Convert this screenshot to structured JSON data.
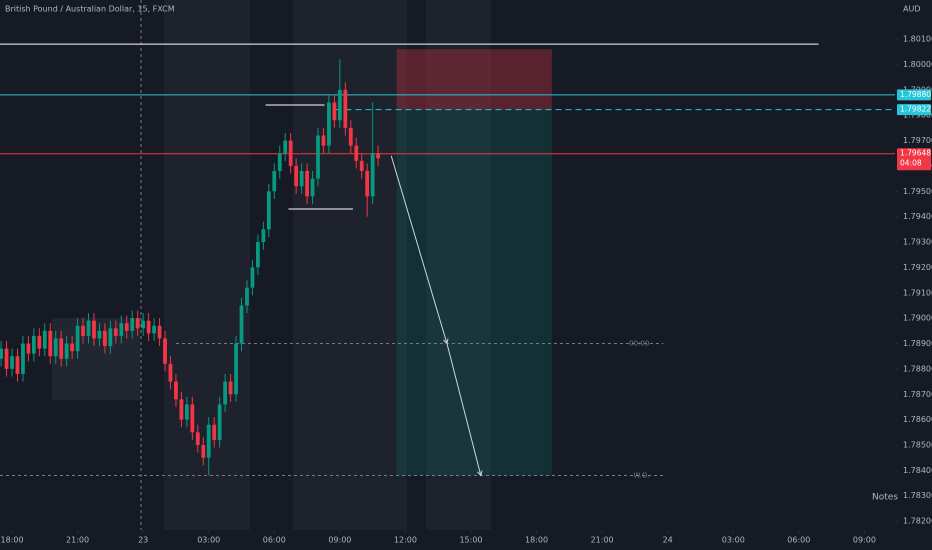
{
  "chart_data": {
    "type": "candlestick",
    "title": "British Pound / Australian Dollar, 15, FXCM",
    "currency": "AUD",
    "notes": "Notes",
    "up_color": "#089981",
    "down_color": "#f23645",
    "xlim": [
      -0.55,
      40.4
    ],
    "ylim": [
      1.78165,
      1.80254
    ],
    "xticks": [
      {
        "value": 0,
        "label": "18:00"
      },
      {
        "value": 3,
        "label": "21:00"
      },
      {
        "value": 6,
        "label": "23"
      },
      {
        "value": 9,
        "label": "03:00"
      },
      {
        "value": 12,
        "label": "06:00"
      },
      {
        "value": 15,
        "label": "09:00"
      },
      {
        "value": 18,
        "label": "12:00"
      },
      {
        "value": 21,
        "label": "15:00"
      },
      {
        "value": 24,
        "label": "18:00"
      },
      {
        "value": 27,
        "label": "21:00"
      },
      {
        "value": 30,
        "label": "24"
      },
      {
        "value": 33,
        "label": "03:00"
      },
      {
        "value": 36,
        "label": "06:00"
      },
      {
        "value": 39,
        "label": "09:00"
      }
    ],
    "yticks": [
      {
        "value": 1.801,
        "label": "1.80100"
      },
      {
        "value": 1.8,
        "label": "1.80000"
      },
      {
        "value": 1.799,
        "label": "1.79900"
      },
      {
        "value": 1.798,
        "label": "1.79800"
      },
      {
        "value": 1.797,
        "label": "1.79700"
      },
      {
        "value": 1.796,
        "label": "1.79600"
      },
      {
        "value": 1.795,
        "label": "1.79500"
      },
      {
        "value": 1.794,
        "label": "1.79400"
      },
      {
        "value": 1.793,
        "label": "1.79300"
      },
      {
        "value": 1.792,
        "label": "1.79200"
      },
      {
        "value": 1.791,
        "label": "1.79100"
      },
      {
        "value": 1.79,
        "label": "1.79000"
      },
      {
        "value": 1.789,
        "label": "1.78900"
      },
      {
        "value": 1.788,
        "label": "1.78800"
      },
      {
        "value": 1.787,
        "label": "1.78700"
      },
      {
        "value": 1.786,
        "label": "1.78600"
      },
      {
        "value": 1.785,
        "label": "1.78500"
      },
      {
        "value": 1.784,
        "label": "1.78400"
      },
      {
        "value": 1.783,
        "label": "1.78300"
      },
      {
        "value": 1.782,
        "label": "1.78200"
      }
    ],
    "x": [
      -0.5,
      -0.25,
      0,
      0.25,
      0.5,
      0.75,
      1,
      1.25,
      1.5,
      1.75,
      2,
      2.25,
      2.5,
      2.75,
      3,
      3.25,
      3.5,
      3.75,
      4,
      4.25,
      4.5,
      4.75,
      5,
      5.25,
      5.5,
      5.75,
      6,
      6.25,
      6.5,
      6.75,
      7,
      7.25,
      7.5,
      7.75,
      8,
      8.25,
      8.5,
      8.75,
      9,
      9.25,
      9.5,
      9.75,
      10,
      10.25,
      10.5,
      10.75,
      11,
      11.25,
      11.5,
      11.75,
      12,
      12.25,
      12.5,
      12.75,
      13,
      13.25,
      13.5,
      13.75,
      14,
      14.25,
      14.5,
      14.75,
      15,
      15.25,
      15.5,
      15.75,
      16,
      16.25,
      16.5,
      16.75
    ],
    "open": [
      1.7884,
      1.7888,
      1.788,
      1.7885,
      1.7878,
      1.789,
      1.7886,
      1.7893,
      1.7888,
      1.7895,
      1.7885,
      1.7892,
      1.7884,
      1.789,
      1.7887,
      1.7897,
      1.7893,
      1.7899,
      1.7892,
      1.7895,
      1.7889,
      1.7896,
      1.7893,
      1.7898,
      1.7895,
      1.79,
      1.7896,
      1.7899,
      1.7894,
      1.7897,
      1.7892,
      1.7882,
      1.7875,
      1.7868,
      1.786,
      1.7866,
      1.7855,
      1.785,
      1.7845,
      1.7858,
      1.7852,
      1.7866,
      1.7875,
      1.787,
      1.789,
      1.7905,
      1.7912,
      1.792,
      1.793,
      1.7935,
      1.795,
      1.7958,
      1.7965,
      1.797,
      1.796,
      1.7952,
      1.7958,
      1.7948,
      1.7955,
      1.7972,
      1.7968,
      1.7985,
      1.7978,
      1.799,
      1.7975,
      1.7968,
      1.7962,
      1.7958,
      1.7948,
      1.7965
    ],
    "high": [
      1.7891,
      1.7891,
      1.7888,
      1.7888,
      1.7893,
      1.7893,
      1.7896,
      1.7896,
      1.7898,
      1.7898,
      1.7895,
      1.7895,
      1.7893,
      1.7893,
      1.79,
      1.79,
      1.7902,
      1.7902,
      1.7898,
      1.7898,
      1.7899,
      1.7899,
      1.7901,
      1.7901,
      1.7903,
      1.7903,
      1.7902,
      1.7902,
      1.79,
      1.79,
      1.7895,
      1.7885,
      1.7878,
      1.7871,
      1.7869,
      1.7869,
      1.7858,
      1.7853,
      1.7861,
      1.7861,
      1.7869,
      1.7878,
      1.7878,
      1.7893,
      1.7908,
      1.7915,
      1.7923,
      1.7933,
      1.7938,
      1.7953,
      1.7961,
      1.7968,
      1.7973,
      1.7973,
      1.7963,
      1.7961,
      1.7961,
      1.7958,
      1.7975,
      1.7975,
      1.7988,
      1.7988,
      1.8002,
      1.7993,
      1.7978,
      1.7971,
      1.7965,
      1.7961,
      1.7985,
      1.7968
    ],
    "low": [
      1.7881,
      1.7877,
      1.7877,
      1.7875,
      1.7875,
      1.7883,
      1.7883,
      1.7885,
      1.7885,
      1.7882,
      1.7882,
      1.7881,
      1.7881,
      1.7884,
      1.7884,
      1.789,
      1.789,
      1.7889,
      1.7889,
      1.7886,
      1.7886,
      1.789,
      1.789,
      1.7892,
      1.7892,
      1.7893,
      1.7893,
      1.7891,
      1.7891,
      1.7889,
      1.7879,
      1.7872,
      1.7865,
      1.7857,
      1.7857,
      1.7852,
      1.7847,
      1.7842,
      1.7838,
      1.7849,
      1.7849,
      1.7863,
      1.7867,
      1.7867,
      1.7887,
      1.7902,
      1.7909,
      1.7917,
      1.7927,
      1.7932,
      1.7947,
      1.7955,
      1.7962,
      1.7957,
      1.7949,
      1.7949,
      1.7945,
      1.7945,
      1.7952,
      1.7965,
      1.7965,
      1.7975,
      1.7975,
      1.7972,
      1.7965,
      1.7959,
      1.7955,
      1.794,
      1.7945,
      1.796
    ],
    "close": [
      1.7888,
      1.788,
      1.7885,
      1.7878,
      1.789,
      1.7886,
      1.7893,
      1.7888,
      1.7895,
      1.7885,
      1.7892,
      1.7884,
      1.789,
      1.7887,
      1.7897,
      1.7893,
      1.7899,
      1.7892,
      1.7895,
      1.7889,
      1.7896,
      1.7893,
      1.7898,
      1.7895,
      1.79,
      1.7896,
      1.7899,
      1.7894,
      1.7897,
      1.7892,
      1.7882,
      1.7875,
      1.7868,
      1.786,
      1.7866,
      1.7855,
      1.785,
      1.7845,
      1.7858,
      1.7852,
      1.7866,
      1.7875,
      1.787,
      1.789,
      1.7905,
      1.7912,
      1.792,
      1.793,
      1.7935,
      1.795,
      1.7958,
      1.7965,
      1.797,
      1.796,
      1.7952,
      1.7958,
      1.7948,
      1.7955,
      1.7972,
      1.7968,
      1.7985,
      1.7978,
      1.799,
      1.7975,
      1.7968,
      1.7962,
      1.7958,
      1.7948,
      1.7965,
      1.7963
    ],
    "position": {
      "stop": 1.8006,
      "entry": 1.79822,
      "target": 1.7838,
      "x_range": [
        17.6,
        24.7
      ],
      "stop_color": "#f23645",
      "target_color": "#089981"
    },
    "projection": {
      "x": [
        17.35,
        19.9,
        21.45
      ],
      "y": [
        1.7964,
        1.789,
        1.7838
      ],
      "color": "#d1d4dc"
    },
    "levels": [
      {
        "value": 1.8008,
        "color": "#ffffff",
        "x_range": [
          -0.55,
          36.9
        ]
      },
      {
        "value": 1.7988,
        "label": "1.79880",
        "color": "#26c6da",
        "x_range": [
          -0.55,
          40.4
        ]
      },
      {
        "value": 1.79822,
        "label": "1.79822",
        "color": "#26c6da",
        "dashed": true,
        "x_range": [
          14.8,
          40.4
        ]
      },
      {
        "value": 1.79648,
        "label": "1.79648",
        "countdown": "04:08",
        "color": "#f23645",
        "x_range": [
          -0.55,
          40.4
        ]
      },
      {
        "value": 1.789,
        "text": "00:00",
        "color": "#787b86",
        "dashed": true,
        "x_range": [
          7.5,
          29.8
        ]
      },
      {
        "value": 1.7838,
        "text": "W.O.",
        "color": "#787b86",
        "dashed": true,
        "x_range": [
          -0.55,
          29.8
        ]
      },
      {
        "value": 1.7984,
        "color": "#ffffff",
        "x_range": [
          11.6,
          14.3
        ]
      },
      {
        "value": 1.7943,
        "color": "#ffffff",
        "x_range": [
          12.65,
          15.6
        ]
      }
    ]
  }
}
